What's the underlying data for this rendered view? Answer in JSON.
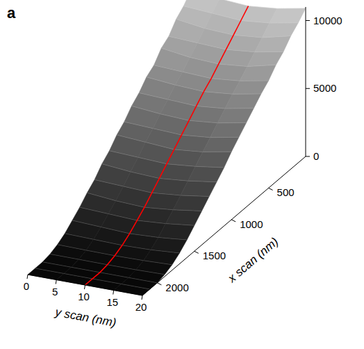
{
  "chart_data": {
    "type": "surface",
    "panel": "a",
    "xlabel": "x scan (nm)",
    "ylabel": "y scan (nm)",
    "xlim": [
      0,
      2200
    ],
    "xticks": [
      500,
      1000,
      1500,
      2000
    ],
    "ylim": [
      0,
      20
    ],
    "yticks": [
      0,
      5,
      10,
      15,
      20
    ],
    "zlim": [
      0,
      11000
    ],
    "zticks": [
      0,
      5000,
      10000
    ],
    "x": [
      0,
      100,
      200,
      300,
      400,
      500,
      600,
      700,
      800,
      900,
      1000,
      1100,
      1200,
      1300,
      1400,
      1500,
      1600,
      1700,
      1800,
      1900,
      2000,
      2100,
      2200
    ],
    "y": [
      0,
      5,
      10,
      15,
      20
    ],
    "z": [
      [
        10700,
        10450,
        10300,
        10500,
        10900
      ],
      [
        10000,
        9850,
        9700,
        9900,
        10300
      ],
      [
        9500,
        9200,
        9100,
        9300,
        9800
      ],
      [
        8700,
        8600,
        8500,
        8700,
        9100
      ],
      [
        8300,
        8000,
        7900,
        8100,
        8600
      ],
      [
        7500,
        7400,
        7300,
        7500,
        7900
      ],
      [
        7100,
        6900,
        6800,
        7000,
        7400
      ],
      [
        6400,
        6300,
        6200,
        6400,
        6800
      ],
      [
        5900,
        5700,
        5600,
        5800,
        6200
      ],
      [
        5200,
        5100,
        5000,
        5200,
        5600
      ],
      [
        4700,
        4550,
        4400,
        4600,
        5000
      ],
      [
        4000,
        3900,
        3800,
        4000,
        4300
      ],
      [
        3500,
        3300,
        3200,
        3400,
        3700
      ],
      [
        2800,
        2700,
        2600,
        2800,
        3100
      ],
      [
        2300,
        2100,
        2000,
        2200,
        2500
      ],
      [
        1700,
        1600,
        1500,
        1650,
        1900
      ],
      [
        1200,
        1100,
        1000,
        1100,
        1300
      ],
      [
        700,
        650,
        600,
        650,
        800
      ],
      [
        350,
        320,
        300,
        330,
        400
      ],
      [
        120,
        110,
        100,
        110,
        150
      ],
      [
        0,
        0,
        0,
        0,
        0
      ],
      [
        0,
        0,
        0,
        0,
        0
      ],
      [
        0,
        0,
        0,
        0,
        0
      ]
    ],
    "line": {
      "y": 10,
      "color": "#ff0000"
    }
  }
}
